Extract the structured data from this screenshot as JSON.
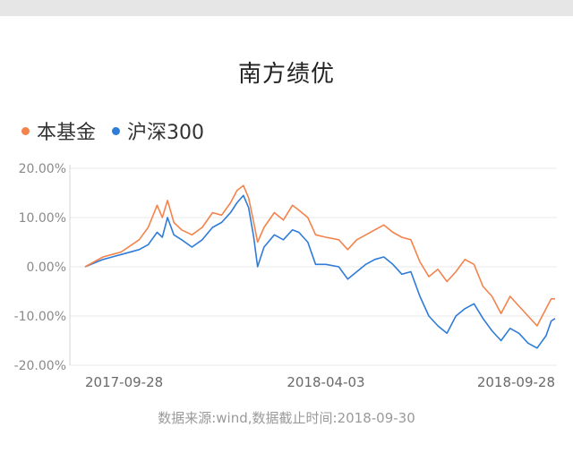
{
  "chart_data": {
    "type": "line",
    "title": "南方绩优",
    "ylim": [
      -20,
      20
    ],
    "y_ticks": [
      "20.00%",
      "10.00%",
      "0.00%",
      "-10.00%",
      "-20.00%"
    ],
    "x_tick_labels": [
      "2017-09-28",
      "2018-04-03",
      "2018-09-28"
    ],
    "x_range": [
      "2017-09-28",
      "2018-09-28"
    ],
    "grid": true,
    "legend_position": "top-left",
    "series": [
      {
        "name": "本基金",
        "color": "#f4834b",
        "points": [
          [
            "2017-09-28",
            0.0
          ],
          [
            "2017-10-12",
            2.0
          ],
          [
            "2017-10-26",
            3.0
          ],
          [
            "2017-11-09",
            5.5
          ],
          [
            "2017-11-16",
            8.0
          ],
          [
            "2017-11-23",
            12.5
          ],
          [
            "2017-11-27",
            10.0
          ],
          [
            "2017-12-01",
            13.5
          ],
          [
            "2017-12-06",
            9.0
          ],
          [
            "2017-12-12",
            7.5
          ],
          [
            "2017-12-20",
            6.5
          ],
          [
            "2017-12-28",
            8.0
          ],
          [
            "2018-01-05",
            11.0
          ],
          [
            "2018-01-12",
            10.5
          ],
          [
            "2018-01-19",
            13.0
          ],
          [
            "2018-01-24",
            15.5
          ],
          [
            "2018-01-29",
            16.5
          ],
          [
            "2018-02-02",
            14.0
          ],
          [
            "2018-02-06",
            9.0
          ],
          [
            "2018-02-09",
            5.0
          ],
          [
            "2018-02-14",
            8.0
          ],
          [
            "2018-02-22",
            11.0
          ],
          [
            "2018-03-01",
            9.5
          ],
          [
            "2018-03-08",
            12.5
          ],
          [
            "2018-03-13",
            11.5
          ],
          [
            "2018-03-20",
            10.0
          ],
          [
            "2018-03-26",
            6.5
          ],
          [
            "2018-04-03",
            6.0
          ],
          [
            "2018-04-13",
            5.5
          ],
          [
            "2018-04-20",
            3.5
          ],
          [
            "2018-04-27",
            5.5
          ],
          [
            "2018-05-04",
            6.5
          ],
          [
            "2018-05-11",
            7.5
          ],
          [
            "2018-05-18",
            8.5
          ],
          [
            "2018-05-25",
            7.0
          ],
          [
            "2018-06-01",
            6.0
          ],
          [
            "2018-06-08",
            5.5
          ],
          [
            "2018-06-15",
            1.0
          ],
          [
            "2018-06-22",
            -2.0
          ],
          [
            "2018-06-29",
            -0.5
          ],
          [
            "2018-07-06",
            -3.0
          ],
          [
            "2018-07-13",
            -1.0
          ],
          [
            "2018-07-20",
            1.5
          ],
          [
            "2018-07-27",
            0.5
          ],
          [
            "2018-08-03",
            -4.0
          ],
          [
            "2018-08-10",
            -6.0
          ],
          [
            "2018-08-17",
            -9.5
          ],
          [
            "2018-08-24",
            -6.0
          ],
          [
            "2018-08-31",
            -8.0
          ],
          [
            "2018-09-07",
            -10.0
          ],
          [
            "2018-09-14",
            -12.0
          ],
          [
            "2018-09-21",
            -8.5
          ],
          [
            "2018-09-25",
            -6.5
          ],
          [
            "2018-09-28",
            -6.5
          ]
        ]
      },
      {
        "name": "沪深300",
        "color": "#2f7cd8",
        "points": [
          [
            "2017-09-28",
            0.0
          ],
          [
            "2017-10-12",
            1.5
          ],
          [
            "2017-10-26",
            2.5
          ],
          [
            "2017-11-09",
            3.5
          ],
          [
            "2017-11-16",
            4.5
          ],
          [
            "2017-11-23",
            7.0
          ],
          [
            "2017-11-27",
            6.0
          ],
          [
            "2017-12-01",
            10.0
          ],
          [
            "2017-12-06",
            6.5
          ],
          [
            "2017-12-12",
            5.5
          ],
          [
            "2017-12-20",
            4.0
          ],
          [
            "2017-12-28",
            5.5
          ],
          [
            "2018-01-05",
            8.0
          ],
          [
            "2018-01-12",
            9.0
          ],
          [
            "2018-01-19",
            11.0
          ],
          [
            "2018-01-24",
            13.0
          ],
          [
            "2018-01-29",
            14.5
          ],
          [
            "2018-02-02",
            12.0
          ],
          [
            "2018-02-06",
            6.0
          ],
          [
            "2018-02-09",
            0.0
          ],
          [
            "2018-02-14",
            4.0
          ],
          [
            "2018-02-22",
            6.5
          ],
          [
            "2018-03-01",
            5.5
          ],
          [
            "2018-03-08",
            7.5
          ],
          [
            "2018-03-13",
            7.0
          ],
          [
            "2018-03-20",
            5.0
          ],
          [
            "2018-03-26",
            0.5
          ],
          [
            "2018-04-03",
            0.5
          ],
          [
            "2018-04-13",
            0.0
          ],
          [
            "2018-04-20",
            -2.5
          ],
          [
            "2018-04-27",
            -1.0
          ],
          [
            "2018-05-04",
            0.5
          ],
          [
            "2018-05-11",
            1.5
          ],
          [
            "2018-05-18",
            2.0
          ],
          [
            "2018-05-25",
            0.5
          ],
          [
            "2018-06-01",
            -1.5
          ],
          [
            "2018-06-08",
            -1.0
          ],
          [
            "2018-06-15",
            -6.0
          ],
          [
            "2018-06-22",
            -10.0
          ],
          [
            "2018-06-29",
            -12.0
          ],
          [
            "2018-07-06",
            -13.5
          ],
          [
            "2018-07-13",
            -10.0
          ],
          [
            "2018-07-20",
            -8.5
          ],
          [
            "2018-07-27",
            -7.5
          ],
          [
            "2018-08-03",
            -10.5
          ],
          [
            "2018-08-10",
            -13.0
          ],
          [
            "2018-08-17",
            -15.0
          ],
          [
            "2018-08-24",
            -12.5
          ],
          [
            "2018-08-31",
            -13.5
          ],
          [
            "2018-09-07",
            -15.5
          ],
          [
            "2018-09-14",
            -16.5
          ],
          [
            "2018-09-21",
            -14.0
          ],
          [
            "2018-09-25",
            -11.0
          ],
          [
            "2018-09-28",
            -10.5
          ]
        ]
      }
    ]
  },
  "source_text": "数据来源:wind,数据截止时间:2018-09-30"
}
